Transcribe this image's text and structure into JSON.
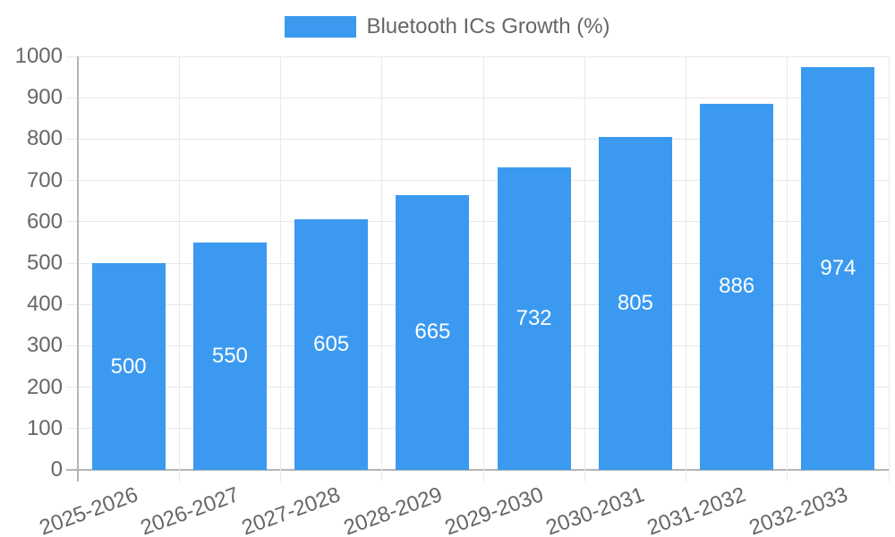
{
  "chart_data": {
    "type": "bar",
    "title": "",
    "categories": [
      "2025-2026",
      "2026-2027",
      "2027-2028",
      "2028-2029",
      "2029-2030",
      "2030-2031",
      "2031-2032",
      "2032-2033"
    ],
    "series": [
      {
        "name": "Bluetooth ICs Growth (%)",
        "color": "#3B9AEF",
        "values": [
          500,
          550,
          605,
          665,
          732,
          805,
          886,
          974
        ]
      }
    ],
    "xlabel": "",
    "ylabel": "",
    "ylim": [
      0,
      1000
    ],
    "yticks": [
      0,
      100,
      200,
      300,
      400,
      500,
      600,
      700,
      800,
      900,
      1000
    ],
    "grid": true,
    "legend_position": "top-center",
    "value_labels": "inside-center",
    "value_label_color": "#FFFFFF",
    "axis_text_color": "#666666",
    "grid_color": "#E8E8E8",
    "axis_line_color": "#B5B5B5",
    "background_color": "#FFFFFF",
    "x_tick_rotation_deg": -20
  }
}
